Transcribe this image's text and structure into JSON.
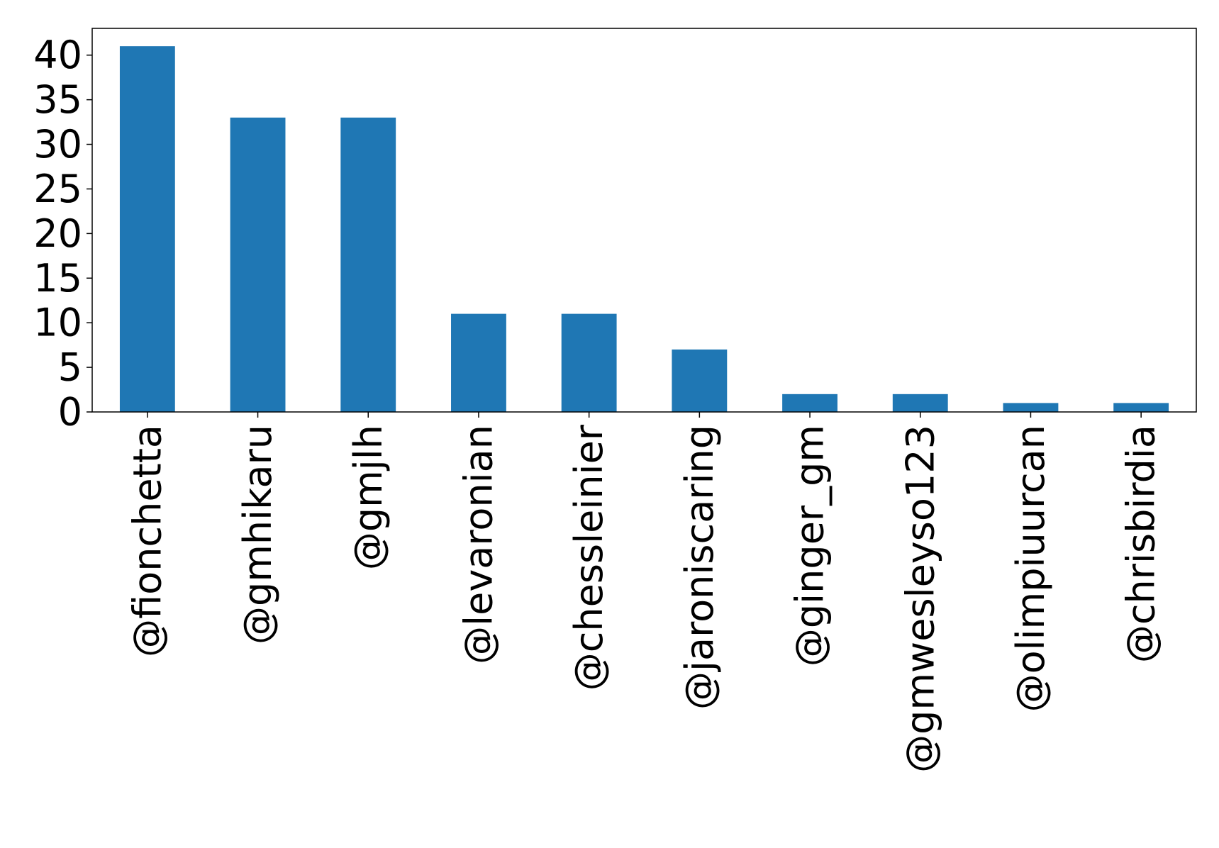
{
  "chart_data": {
    "type": "bar",
    "title": "",
    "xlabel": "",
    "ylabel": "",
    "categories": [
      "@fionchetta",
      "@gmhikaru",
      "@gmjlh",
      "@levaronian",
      "@chessleinier",
      "@jaroniscaring",
      "@ginger_gm",
      "@gmwesleyso123",
      "@olimpiuurcan",
      "@chrisbirdia"
    ],
    "values": [
      41,
      33,
      33,
      11,
      11,
      7,
      2,
      2,
      1,
      1
    ],
    "ylim": [
      0,
      43
    ],
    "yticks": [
      0,
      5,
      10,
      15,
      20,
      25,
      30,
      35,
      40
    ],
    "grid": false,
    "legend": "none",
    "colors": {
      "bar": "#1f77b4",
      "axis": "#000000"
    }
  }
}
